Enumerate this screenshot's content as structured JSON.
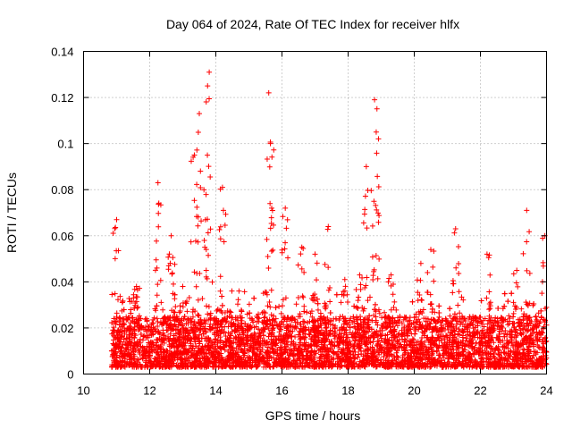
{
  "chart_data": {
    "type": "scatter",
    "title": "Day 064 of 2024, Rate Of TEC Index for receiver hlfx",
    "xlabel": "GPS time / hours",
    "ylabel": "ROTI / TECUs",
    "xlim": [
      10,
      24
    ],
    "ylim": [
      0,
      0.14
    ],
    "x_ticks": [
      10,
      12,
      14,
      16,
      18,
      20,
      22,
      24
    ],
    "x_tick_labels": [
      "10",
      "12",
      "14",
      "16",
      "18",
      "20",
      "22",
      "24"
    ],
    "y_ticks": [
      0,
      0.02,
      0.04,
      0.06,
      0.08,
      0.1,
      0.12,
      0.14
    ],
    "y_tick_labels": [
      "0",
      "0.02",
      "0.04",
      "0.06",
      "0.08",
      "0.1",
      "0.12",
      "0.14"
    ],
    "grid": true,
    "marker": "+",
    "color": "#ff0000",
    "series": [
      {
        "name": "ROTI",
        "x_range": [
          10.85,
          24.0
        ],
        "baseline_range": [
          0.003,
          0.025
        ],
        "density_per_hour": 420,
        "peaks": [
          {
            "x": 11.0,
            "y": 0.067
          },
          {
            "x": 11.6,
            "y": 0.038
          },
          {
            "x": 12.25,
            "y": 0.083
          },
          {
            "x": 12.65,
            "y": 0.06
          },
          {
            "x": 13.0,
            "y": 0.038
          },
          {
            "x": 13.35,
            "y": 0.095
          },
          {
            "x": 13.5,
            "y": 0.113
          },
          {
            "x": 13.75,
            "y": 0.125
          },
          {
            "x": 13.8,
            "y": 0.131
          },
          {
            "x": 14.2,
            "y": 0.081
          },
          {
            "x": 14.7,
            "y": 0.036
          },
          {
            "x": 15.6,
            "y": 0.122
          },
          {
            "x": 15.65,
            "y": 0.1
          },
          {
            "x": 16.1,
            "y": 0.072
          },
          {
            "x": 16.6,
            "y": 0.055
          },
          {
            "x": 17.0,
            "y": 0.052
          },
          {
            "x": 17.4,
            "y": 0.064
          },
          {
            "x": 17.9,
            "y": 0.041
          },
          {
            "x": 18.35,
            "y": 0.043
          },
          {
            "x": 18.55,
            "y": 0.09
          },
          {
            "x": 18.8,
            "y": 0.119
          },
          {
            "x": 18.85,
            "y": 0.105
          },
          {
            "x": 19.3,
            "y": 0.043
          },
          {
            "x": 20.2,
            "y": 0.048
          },
          {
            "x": 20.5,
            "y": 0.054
          },
          {
            "x": 21.25,
            "y": 0.063
          },
          {
            "x": 22.2,
            "y": 0.052
          },
          {
            "x": 23.1,
            "y": 0.045
          },
          {
            "x": 23.4,
            "y": 0.071
          },
          {
            "x": 23.95,
            "y": 0.06
          }
        ]
      }
    ]
  }
}
